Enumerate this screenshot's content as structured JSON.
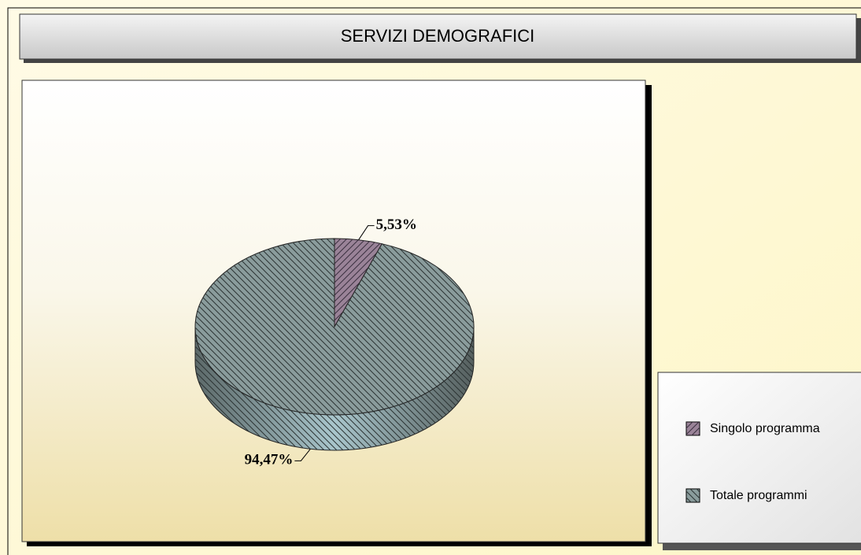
{
  "chart_data": {
    "type": "pie",
    "title": "SERVIZI DEMOGRAFICI",
    "series": [
      {
        "name": "Singolo programma",
        "color": "#9a8398",
        "values": [
          5.53
        ],
        "value_labels": [
          "5,53%"
        ]
      },
      {
        "name": "Totale programmi",
        "color": "#8a9c9c",
        "values": [
          94.47
        ],
        "value_labels": [
          "94,47%"
        ]
      }
    ]
  }
}
